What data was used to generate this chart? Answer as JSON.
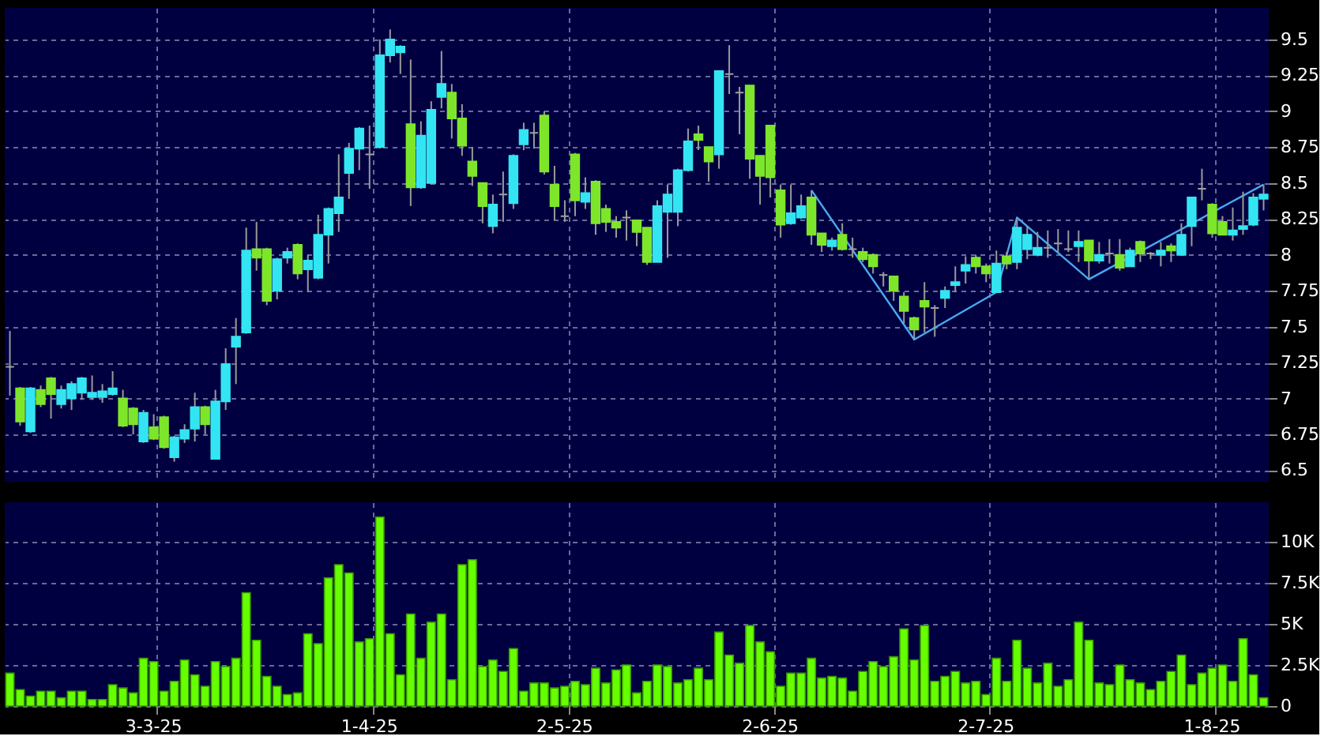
{
  "chart_data": [
    {
      "type": "candlestick",
      "tick_labels": "y",
      "grid": true,
      "categories": [
        null,
        null,
        null,
        null,
        null,
        null,
        null,
        null,
        null,
        null,
        null,
        null,
        null,
        null,
        null,
        null,
        null,
        null,
        null,
        null,
        null,
        null,
        null,
        null,
        null,
        null,
        null,
        null,
        null,
        null,
        null,
        null,
        null,
        null,
        null,
        null,
        null,
        null,
        null,
        null,
        null,
        null,
        null,
        null,
        null,
        null,
        null,
        null,
        null,
        null,
        null,
        null,
        null,
        null,
        null,
        null,
        null,
        null,
        null,
        null,
        null,
        null,
        null,
        null,
        null,
        null,
        null,
        null,
        null,
        null,
        null,
        null,
        null,
        null,
        null,
        null,
        null,
        null,
        null,
        null,
        null,
        null,
        null,
        null,
        null,
        null,
        null,
        null,
        null,
        null,
        null,
        null,
        null,
        null,
        null,
        null,
        null,
        null,
        null,
        null,
        null,
        null,
        null,
        null,
        null,
        null,
        null,
        null,
        null,
        null,
        null,
        null,
        null,
        null,
        null,
        null,
        null,
        null,
        null,
        null,
        null,
        null,
        null
      ],
      "ohlc": [
        [
          7.22,
          7.47,
          7.02,
          7.22
        ],
        [
          7.07,
          7.08,
          6.81,
          6.84
        ],
        [
          6.77,
          7.08,
          6.76,
          7.07
        ],
        [
          7.06,
          7.09,
          6.94,
          6.96
        ],
        [
          7.14,
          7.15,
          6.86,
          7.03
        ],
        [
          6.96,
          7.09,
          6.93,
          7.06
        ],
        [
          7.0,
          7.12,
          6.92,
          7.1
        ],
        [
          7.04,
          7.15,
          6.99,
          7.14
        ],
        [
          7.01,
          7.16,
          6.99,
          7.04
        ],
        [
          7.01,
          7.1,
          6.97,
          7.05
        ],
        [
          7.03,
          7.19,
          7.02,
          7.07
        ],
        [
          7.0,
          7.06,
          6.8,
          6.81
        ],
        [
          6.93,
          6.94,
          6.75,
          6.82
        ],
        [
          6.7,
          6.92,
          6.69,
          6.9
        ],
        [
          6.8,
          6.89,
          6.71,
          6.72
        ],
        [
          6.87,
          6.88,
          6.65,
          6.66
        ],
        [
          6.59,
          6.74,
          6.56,
          6.73
        ],
        [
          6.72,
          6.82,
          6.69,
          6.78
        ],
        [
          6.79,
          7.04,
          6.7,
          6.94
        ],
        [
          6.94,
          6.95,
          6.75,
          6.82
        ],
        [
          6.58,
          7.06,
          6.58,
          6.98
        ],
        [
          6.98,
          7.35,
          6.92,
          7.24
        ],
        [
          7.36,
          7.56,
          7.1,
          7.43
        ],
        [
          7.46,
          8.19,
          7.45,
          8.03
        ],
        [
          8.04,
          8.23,
          7.89,
          7.98
        ],
        [
          8.04,
          8.05,
          7.65,
          7.68
        ],
        [
          7.75,
          7.98,
          7.69,
          7.97
        ],
        [
          7.98,
          8.05,
          7.94,
          8.02
        ],
        [
          8.07,
          8.08,
          7.83,
          7.87
        ],
        [
          7.9,
          8.0,
          7.74,
          7.96
        ],
        [
          7.84,
          8.28,
          7.83,
          8.14
        ],
        [
          8.14,
          8.33,
          7.94,
          8.32
        ],
        [
          8.29,
          8.7,
          8.16,
          8.4
        ],
        [
          8.57,
          8.78,
          8.39,
          8.74
        ],
        [
          8.74,
          8.89,
          8.59,
          8.88
        ],
        [
          8.7,
          8.9,
          8.46,
          8.7
        ],
        [
          8.75,
          9.5,
          8.74,
          9.39
        ],
        [
          9.39,
          9.57,
          9.34,
          9.5
        ],
        [
          9.41,
          9.46,
          9.26,
          9.45
        ],
        [
          8.91,
          9.36,
          8.34,
          8.47
        ],
        [
          8.47,
          8.93,
          8.46,
          8.83
        ],
        [
          8.5,
          9.07,
          8.49,
          9.01
        ],
        [
          9.1,
          9.42,
          9.02,
          9.19
        ],
        [
          9.13,
          9.19,
          8.81,
          8.95
        ],
        [
          8.95,
          9.05,
          8.69,
          8.76
        ],
        [
          8.65,
          8.75,
          8.48,
          8.55
        ],
        [
          8.5,
          8.5,
          8.22,
          8.34
        ],
        [
          8.2,
          8.42,
          8.15,
          8.35
        ],
        [
          8.42,
          8.58,
          8.23,
          8.42
        ],
        [
          8.36,
          8.7,
          8.32,
          8.69
        ],
        [
          8.77,
          8.92,
          8.73,
          8.87
        ],
        [
          8.85,
          8.92,
          8.74,
          8.85
        ],
        [
          8.97,
          9.0,
          8.56,
          8.58
        ],
        [
          8.49,
          8.62,
          8.24,
          8.34
        ],
        [
          8.27,
          8.38,
          8.23,
          8.27
        ],
        [
          8.7,
          8.71,
          8.27,
          8.38
        ],
        [
          8.37,
          8.54,
          8.32,
          8.43
        ],
        [
          8.51,
          8.52,
          8.14,
          8.22
        ],
        [
          8.32,
          8.35,
          8.16,
          8.23
        ],
        [
          8.23,
          8.27,
          8.12,
          8.19
        ],
        [
          8.26,
          8.31,
          8.1,
          8.26
        ],
        [
          8.24,
          8.24,
          8.06,
          8.16
        ],
        [
          8.19,
          8.19,
          7.93,
          7.95
        ],
        [
          7.95,
          8.38,
          7.95,
          8.34
        ],
        [
          8.3,
          8.49,
          7.98,
          8.42
        ],
        [
          8.3,
          8.6,
          8.2,
          8.59
        ],
        [
          8.59,
          8.88,
          8.58,
          8.79
        ],
        [
          8.84,
          8.9,
          8.73,
          8.8
        ],
        [
          8.75,
          8.75,
          8.51,
          8.65
        ],
        [
          8.7,
          9.28,
          8.6,
          9.28
        ],
        [
          9.26,
          9.46,
          9.12,
          9.26
        ],
        [
          9.13,
          9.17,
          8.84,
          9.13
        ],
        [
          9.18,
          9.18,
          8.53,
          8.67
        ],
        [
          8.69,
          8.69,
          8.35,
          8.55
        ],
        [
          8.9,
          8.9,
          8.4,
          8.54
        ],
        [
          8.45,
          8.49,
          8.12,
          8.21
        ],
        [
          8.22,
          8.49,
          8.21,
          8.29
        ],
        [
          8.26,
          8.42,
          8.25,
          8.34
        ],
        [
          8.4,
          8.45,
          8.07,
          8.14
        ],
        [
          8.15,
          8.15,
          8.02,
          8.07
        ],
        [
          8.06,
          8.12,
          8.03,
          8.1
        ],
        [
          8.14,
          8.22,
          8.03,
          8.04
        ],
        [
          8.04,
          8.12,
          7.98,
          8.04
        ],
        [
          8.02,
          8.05,
          7.95,
          7.97
        ],
        [
          8.0,
          8.01,
          7.87,
          7.92
        ],
        [
          7.86,
          7.88,
          7.78,
          7.86
        ],
        [
          7.85,
          7.85,
          7.68,
          7.75
        ],
        [
          7.71,
          7.74,
          7.52,
          7.61
        ],
        [
          7.56,
          7.57,
          7.41,
          7.48
        ],
        [
          7.68,
          7.81,
          7.46,
          7.64
        ],
        [
          7.63,
          7.65,
          7.43,
          7.63
        ],
        [
          7.7,
          7.78,
          7.63,
          7.75
        ],
        [
          7.79,
          7.92,
          7.74,
          7.81
        ],
        [
          7.89,
          7.99,
          7.8,
          7.93
        ],
        [
          7.98,
          8.0,
          7.87,
          7.92
        ],
        [
          7.92,
          7.94,
          7.81,
          7.87
        ],
        [
          7.74,
          8.03,
          7.74,
          7.94
        ],
        [
          7.99,
          8.02,
          7.9,
          7.94
        ],
        [
          7.95,
          8.25,
          7.9,
          8.19
        ],
        [
          8.04,
          8.2,
          7.97,
          8.14
        ],
        [
          8.0,
          8.16,
          7.99,
          8.05
        ],
        [
          8.05,
          8.17,
          7.98,
          8.05
        ],
        [
          8.08,
          8.18,
          8.02,
          8.08
        ],
        [
          8.04,
          8.17,
          8.02,
          8.04
        ],
        [
          8.06,
          8.17,
          7.95,
          8.09
        ],
        [
          8.1,
          8.1,
          7.84,
          7.96
        ],
        [
          7.96,
          8.09,
          7.94,
          8.0
        ],
        [
          8.01,
          8.11,
          7.94,
          8.01
        ],
        [
          8.0,
          8.11,
          7.89,
          7.91
        ],
        [
          7.92,
          8.05,
          7.92,
          8.03
        ],
        [
          8.09,
          8.1,
          7.95,
          8.01
        ],
        [
          8.01,
          8.02,
          7.97,
          8.01
        ],
        [
          8.0,
          8.09,
          7.92,
          8.03
        ],
        [
          8.06,
          8.08,
          7.95,
          8.03
        ],
        [
          8.0,
          8.22,
          8.0,
          8.14
        ],
        [
          8.2,
          8.4,
          8.06,
          8.4
        ],
        [
          8.46,
          8.6,
          8.38,
          8.46
        ],
        [
          8.35,
          8.36,
          8.12,
          8.15
        ],
        [
          8.23,
          8.27,
          8.14,
          8.14
        ],
        [
          8.14,
          8.33,
          8.1,
          8.17
        ],
        [
          8.18,
          8.44,
          8.14,
          8.2
        ],
        [
          8.21,
          8.43,
          8.2,
          8.4
        ],
        [
          8.39,
          8.49,
          8.31,
          8.42
        ]
      ],
      "colors": [
        "#a0a0a0",
        "#7ee62a",
        "#33e5f2",
        "#7ee62a",
        "#7ee62a",
        "#33e5f2",
        "#33e5f2",
        "#33e5f2",
        "#33e5f2",
        "#33e5f2",
        "#33e5f2",
        "#7ee62a",
        "#7ee62a",
        "#33e5f2",
        "#7ee62a",
        "#7ee62a",
        "#33e5f2",
        "#33e5f2",
        "#33e5f2",
        "#7ee62a",
        "#33e5f2",
        "#33e5f2",
        "#33e5f2",
        "#33e5f2",
        "#7ee62a",
        "#7ee62a",
        "#33e5f2",
        "#33e5f2",
        "#7ee62a",
        "#33e5f2",
        "#33e5f2",
        "#33e5f2",
        "#33e5f2",
        "#33e5f2",
        "#33e5f2",
        "#a0a0a0",
        "#33e5f2",
        "#33e5f2",
        "#33e5f2",
        "#7ee62a",
        "#33e5f2",
        "#33e5f2",
        "#33e5f2",
        "#7ee62a",
        "#7ee62a",
        "#7ee62a",
        "#7ee62a",
        "#33e5f2",
        "#a0a0a0",
        "#33e5f2",
        "#33e5f2",
        "#a0a0a0",
        "#7ee62a",
        "#7ee62a",
        "#a0a0a0",
        "#7ee62a",
        "#33e5f2",
        "#7ee62a",
        "#7ee62a",
        "#7ee62a",
        "#a0a0a0",
        "#7ee62a",
        "#7ee62a",
        "#33e5f2",
        "#33e5f2",
        "#33e5f2",
        "#33e5f2",
        "#7ee62a",
        "#7ee62a",
        "#33e5f2",
        "#a0a0a0",
        "#a0a0a0",
        "#7ee62a",
        "#7ee62a",
        "#7ee62a",
        "#7ee62a",
        "#33e5f2",
        "#33e5f2",
        "#7ee62a",
        "#7ee62a",
        "#33e5f2",
        "#7ee62a",
        "#a0a0a0",
        "#7ee62a",
        "#7ee62a",
        "#a0a0a0",
        "#7ee62a",
        "#7ee62a",
        "#7ee62a",
        "#7ee62a",
        "#a0a0a0",
        "#33e5f2",
        "#33e5f2",
        "#33e5f2",
        "#7ee62a",
        "#7ee62a",
        "#33e5f2",
        "#7ee62a",
        "#33e5f2",
        "#33e5f2",
        "#33e5f2",
        "#a0a0a0",
        "#a0a0a0",
        "#a0a0a0",
        "#33e5f2",
        "#7ee62a",
        "#33e5f2",
        "#a0a0a0",
        "#7ee62a",
        "#33e5f2",
        "#7ee62a",
        "#a0a0a0",
        "#33e5f2",
        "#7ee62a",
        "#33e5f2",
        "#33e5f2",
        "#a0a0a0",
        "#7ee62a",
        "#7ee62a",
        "#33e5f2",
        "#33e5f2",
        "#33e5f2",
        "#33e5f2"
      ],
      "series": [
        {
          "type": "line",
          "color": "#4aa8f0",
          "values": [
            null,
            null,
            null,
            null,
            null,
            null,
            null,
            null,
            null,
            null,
            null,
            null,
            null,
            null,
            null,
            null,
            null,
            null,
            null,
            null,
            null,
            null,
            null,
            null,
            null,
            null,
            null,
            null,
            null,
            null,
            null,
            null,
            null,
            null,
            null,
            null,
            null,
            null,
            null,
            null,
            null,
            null,
            null,
            null,
            null,
            null,
            null,
            null,
            null,
            null,
            null,
            null,
            null,
            null,
            null,
            null,
            null,
            null,
            null,
            null,
            null,
            null,
            null,
            null,
            null,
            null,
            null,
            null,
            null,
            null,
            null,
            null,
            null,
            null,
            null,
            null,
            null,
            null,
            8.45,
            null,
            null,
            null,
            null,
            null,
            null,
            null,
            null,
            null,
            7.41,
            null,
            null,
            null,
            null,
            null,
            null,
            null,
            7.74,
            null,
            8.26,
            null,
            null,
            null,
            null,
            null,
            null,
            7.83,
            null,
            null,
            null,
            null,
            null,
            null,
            null,
            null,
            null,
            null,
            null,
            null,
            null,
            null,
            null,
            null,
            8.49
          ]
        }
      ],
      "ylim": [
        6.42,
        9.72
      ],
      "yticks": [
        6.5,
        6.75,
        7,
        7.25,
        7.5,
        7.75,
        8,
        8.25,
        8.5,
        8.75,
        9,
        9.25,
        9.5
      ]
    },
    {
      "type": "bar",
      "grid": true,
      "color": "#66ff00",
      "categories": [
        null,
        null,
        null,
        null,
        null,
        null,
        null,
        null,
        null,
        null,
        null,
        null,
        null,
        null,
        "3-3-25",
        null,
        null,
        null,
        null,
        null,
        null,
        null,
        null,
        null,
        null,
        null,
        null,
        null,
        null,
        null,
        null,
        null,
        null,
        null,
        null,
        "1-4-25",
        null,
        null,
        null,
        null,
        null,
        null,
        null,
        null,
        null,
        null,
        null,
        null,
        null,
        null,
        null,
        null,
        null,
        null,
        "2-5-25",
        null,
        null,
        null,
        null,
        null,
        null,
        null,
        null,
        null,
        null,
        null,
        null,
        null,
        null,
        null,
        null,
        null,
        null,
        null,
        "2-6-25",
        null,
        null,
        null,
        null,
        null,
        null,
        null,
        null,
        null,
        null,
        null,
        null,
        null,
        null,
        null,
        null,
        null,
        null,
        null,
        null,
        "2-7-25",
        null,
        null,
        null,
        null,
        null,
        null,
        null,
        null,
        null,
        null,
        null,
        null,
        null,
        null,
        null,
        null,
        null,
        null,
        null,
        null,
        null,
        "1-8-25",
        null,
        null,
        null,
        null,
        null
      ],
      "values": [
        2000,
        1000,
        600,
        900,
        900,
        500,
        900,
        900,
        400,
        400,
        1300,
        1100,
        800,
        2900,
        2700,
        900,
        1500,
        2800,
        1900,
        1200,
        2700,
        2400,
        2900,
        6900,
        4000,
        1800,
        1200,
        700,
        800,
        4400,
        3800,
        7800,
        8600,
        8100,
        3900,
        4100,
        11500,
        4400,
        1900,
        5600,
        2900,
        5100,
        5600,
        1600,
        8600,
        8900,
        2400,
        2800,
        2100,
        3500,
        900,
        1400,
        1400,
        1100,
        1200,
        1500,
        1300,
        2300,
        1400,
        2200,
        2500,
        800,
        1500,
        2500,
        2400,
        1400,
        1600,
        2300,
        1600,
        4500,
        3100,
        2600,
        4900,
        3900,
        3300,
        1200,
        2000,
        2000,
        2900,
        1700,
        1800,
        1700,
        900,
        2100,
        2700,
        2400,
        3000,
        4700,
        2800,
        4900,
        1500,
        1800,
        2100,
        1400,
        1500,
        700,
        2900,
        1500,
        4000,
        2300,
        1400,
        2600,
        1200,
        1600,
        5100,
        4000,
        1400,
        1300,
        2500,
        1600,
        1400,
        1000,
        1500,
        2100,
        3100,
        1300,
        2000,
        2300,
        2500,
        1500,
        4100,
        1900,
        500
      ],
      "ylim": [
        0,
        12400
      ],
      "yticks": [
        0,
        {
          "value": 2500,
          "label": "2.5K"
        },
        {
          "value": 5000,
          "label": "5K"
        },
        {
          "value": 7500,
          "label": "7.5K"
        },
        {
          "value": 10000,
          "label": "10K"
        }
      ]
    }
  ]
}
